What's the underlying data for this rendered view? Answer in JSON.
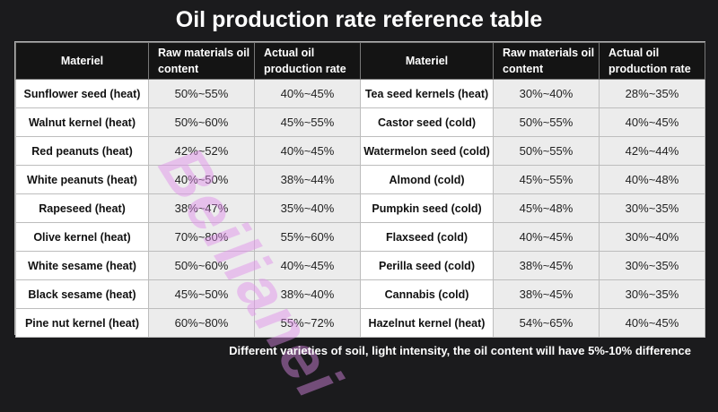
{
  "title": "Oil production rate reference table",
  "headers": {
    "materiel": "Materiel",
    "raw_content": "Raw materials oil content",
    "actual_rate": "Actual oil production rate"
  },
  "rows": [
    {
      "left": {
        "name": "Sunflower seed (heat)",
        "raw": "50%~55%",
        "actual": "40%~45%"
      },
      "right": {
        "name": "Tea seed kernels (heat)",
        "raw": "30%~40%",
        "actual": "28%~35%"
      }
    },
    {
      "left": {
        "name": "Walnut kernel (heat)",
        "raw": "50%~60%",
        "actual": "45%~55%"
      },
      "right": {
        "name": "Castor seed (cold)",
        "raw": "50%~55%",
        "actual": "40%~45%"
      }
    },
    {
      "left": {
        "name": "Red peanuts (heat)",
        "raw": "42%~52%",
        "actual": "40%~45%"
      },
      "right": {
        "name": "Watermelon seed (cold)",
        "raw": "50%~55%",
        "actual": "42%~44%"
      }
    },
    {
      "left": {
        "name": "White peanuts (heat)",
        "raw": "40%~50%",
        "actual": "38%~44%"
      },
      "right": {
        "name": "Almond (cold)",
        "raw": "45%~55%",
        "actual": "40%~48%"
      }
    },
    {
      "left": {
        "name": "Rapeseed (heat)",
        "raw": "38%~47%",
        "actual": "35%~40%"
      },
      "right": {
        "name": "Pumpkin seed (cold)",
        "raw": "45%~48%",
        "actual": "30%~35%"
      }
    },
    {
      "left": {
        "name": "Olive kernel (heat)",
        "raw": "70%~80%",
        "actual": "55%~60%"
      },
      "right": {
        "name": "Flaxseed (cold)",
        "raw": "40%~45%",
        "actual": "30%~40%"
      }
    },
    {
      "left": {
        "name": "White sesame (heat)",
        "raw": "50%~60%",
        "actual": "40%~45%"
      },
      "right": {
        "name": "Perilla seed (cold)",
        "raw": "38%~45%",
        "actual": "30%~35%"
      }
    },
    {
      "left": {
        "name": "Black sesame (heat)",
        "raw": "45%~50%",
        "actual": "38%~40%"
      },
      "right": {
        "name": "Cannabis (cold)",
        "raw": "38%~45%",
        "actual": "30%~35%"
      }
    },
    {
      "left": {
        "name": "Pine nut kernel (heat)",
        "raw": "60%~80%",
        "actual": "55%~72%"
      },
      "right": {
        "name": "Hazelnut kernel (heat)",
        "raw": "54%~65%",
        "actual": "40%~45%"
      }
    }
  ],
  "watermark": "Beilianei",
  "footer": "Different varieties of soil, light intensity,  the oil content will have 5%-10% difference"
}
